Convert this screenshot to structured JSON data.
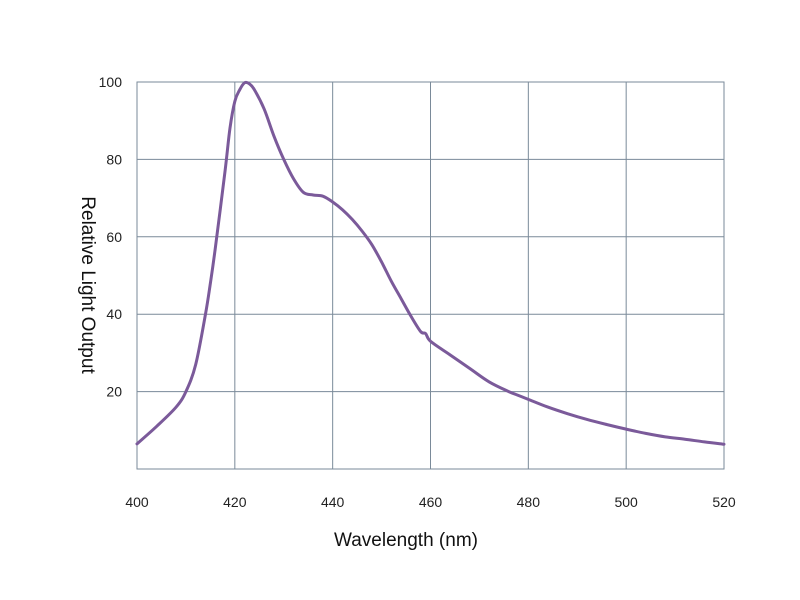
{
  "chart_data": {
    "type": "line",
    "title": "",
    "xlabel": "Wavelength (nm)",
    "ylabel": "Relative Light Output",
    "xlim": [
      400,
      520
    ],
    "ylim": [
      0,
      100
    ],
    "xticks": [
      400,
      420,
      440,
      460,
      480,
      500,
      520
    ],
    "yticks": [
      20,
      40,
      60,
      80,
      100
    ],
    "grid": true,
    "legend": "none",
    "colors": {
      "line": "#7b5a9a",
      "grid": "#7a8a99",
      "frame": "#7a8a99"
    },
    "series": [
      {
        "x": [
          400,
          404,
          408,
          410,
          412,
          414,
          415,
          416,
          418,
          419,
          420,
          421,
          422,
          423,
          424,
          426,
          428,
          430,
          432,
          434,
          436,
          438,
          440,
          442,
          444,
          446,
          448,
          450,
          452,
          454,
          456,
          458,
          459,
          460,
          464,
          468,
          472,
          476,
          478,
          480,
          484,
          488,
          492,
          496,
          500,
          504,
          508,
          512,
          516,
          520
        ],
        "y": [
          6.5,
          11,
          16,
          20,
          27,
          40,
          48,
          57,
          77,
          88,
          95,
          98,
          99.8,
          99.5,
          98,
          93,
          86,
          80,
          75,
          71.5,
          70.8,
          70.5,
          69,
          67,
          64.5,
          61.5,
          58,
          53.5,
          48.5,
          44,
          39.5,
          35.5,
          35,
          33,
          29.5,
          26,
          22.5,
          20,
          19,
          18,
          16,
          14.3,
          12.8,
          11.5,
          10.3,
          9.2,
          8.3,
          7.7,
          7,
          6.4
        ]
      }
    ]
  }
}
